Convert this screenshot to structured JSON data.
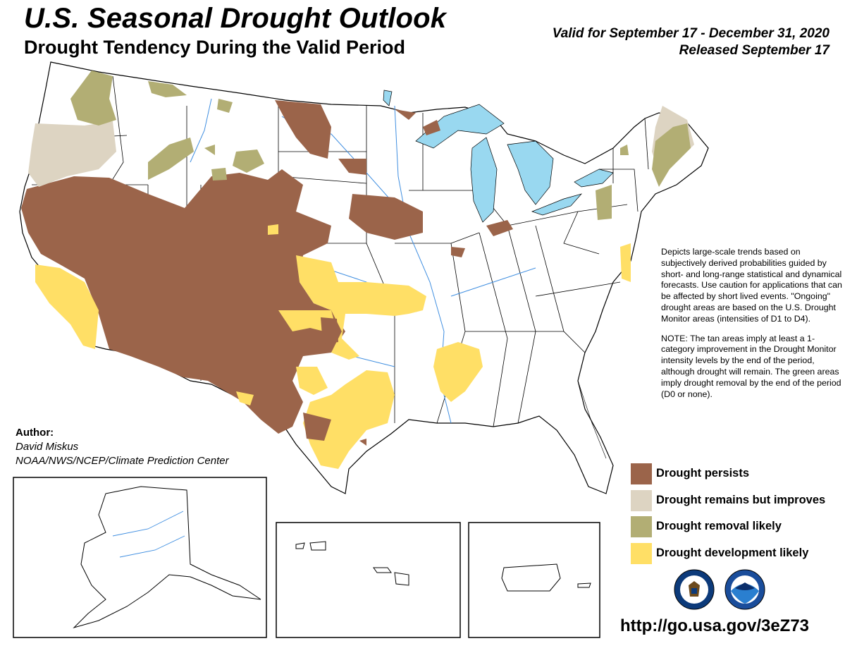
{
  "header": {
    "title": "U.S. Seasonal Drought Outlook",
    "subtitle": "Drought Tendency During the Valid Period",
    "valid": "Valid for September 17 - December 31, 2020",
    "released": "Released September 17"
  },
  "description": {
    "p1": "Depicts large-scale trends based on subjectively derived probabilities guided by short- and long-range statistical and dynamical forecasts. Use caution for applications that can be affected by short lived events. \"Ongoing\" drought areas are based on the U.S. Drought Monitor areas (intensities of D1 to D4).",
    "p2": "NOTE: The tan areas imply at least a 1-category improvement in the Drought Monitor intensity levels by the end of the period, although drought will remain. The green areas imply drought removal by the end of the period (D0 or none)."
  },
  "legend": [
    {
      "label": "Drought persists",
      "color": "#9b644a"
    },
    {
      "label": "Drought remains but improves",
      "color": "#ddd4c2"
    },
    {
      "label": "Drought removal likely",
      "color": "#b2ae74"
    },
    {
      "label": "Drought development likely",
      "color": "#ffdf66"
    }
  ],
  "author": {
    "label": "Author:",
    "name": "David Miskus",
    "org": "NOAA/NWS/NCEP/Climate Prediction Center"
  },
  "colors": {
    "persists": "#9b644a",
    "improves": "#ddd4c2",
    "removal": "#b2ae74",
    "development": "#ffdf66",
    "water": "#99d8f0",
    "rivers": "#3f8ee0"
  },
  "logos": [
    "usda-seal-icon",
    "noaa-logo-icon"
  ],
  "url": "http://go.usa.gov/3eZ73"
}
